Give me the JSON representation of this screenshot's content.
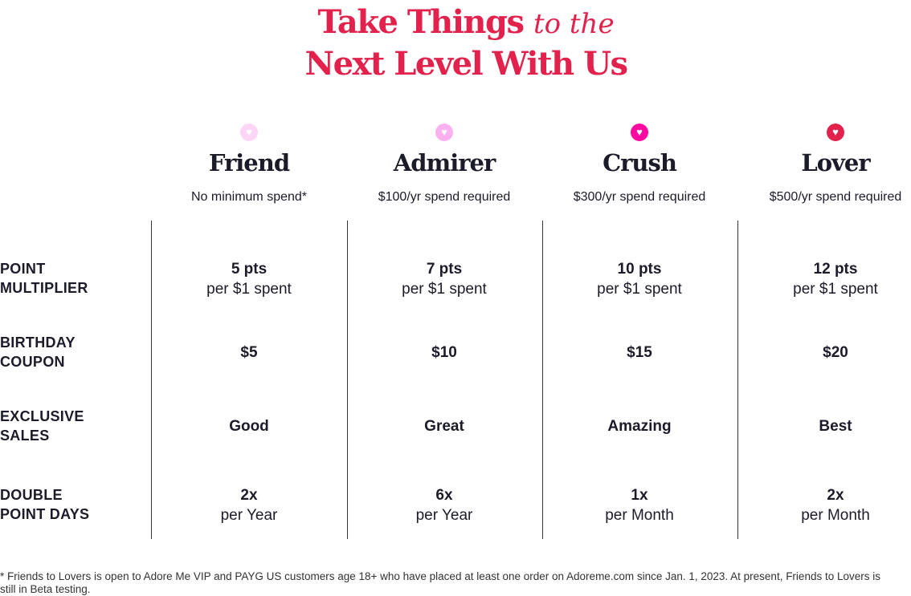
{
  "title": {
    "line1_bold": "Take Things",
    "line1_italic": "to the",
    "line2": "Next Level With Us",
    "color": "#e2224d"
  },
  "tiers": [
    {
      "name": "Friend",
      "requirement": "No minimum spend*",
      "heart_color": "#fdd5f7",
      "icon": "heart-icon"
    },
    {
      "name": "Admirer",
      "requirement": "$100/yr spend required",
      "heart_color": "#fbb0f0",
      "icon": "heart-icon"
    },
    {
      "name": "Crush",
      "requirement": "$300/yr spend required",
      "heart_color": "#ff0aa0",
      "icon": "heart-icon"
    },
    {
      "name": "Lover",
      "requirement": "$500/yr spend required",
      "heart_color": "#e2224d",
      "icon": "heart-icon"
    }
  ],
  "rows": [
    {
      "label1": "POINT",
      "label2": "MULTIPLIER",
      "cells": [
        {
          "main": "5 pts",
          "sub": "per $1 spent"
        },
        {
          "main": "7 pts",
          "sub": "per $1 spent"
        },
        {
          "main": "10 pts",
          "sub": "per $1 spent"
        },
        {
          "main": "12 pts",
          "sub": "per $1 spent"
        }
      ]
    },
    {
      "label1": "BIRTHDAY",
      "label2": "COUPON",
      "cells": [
        {
          "main": "$5"
        },
        {
          "main": "$10"
        },
        {
          "main": "$15"
        },
        {
          "main": "$20"
        }
      ]
    },
    {
      "label1": "EXCLUSIVE",
      "label2": "SALES",
      "cells": [
        {
          "main": "Good"
        },
        {
          "main": "Great"
        },
        {
          "main": "Amazing"
        },
        {
          "main": "Best"
        }
      ]
    },
    {
      "label1": "DOUBLE",
      "label2": "POINT DAYS",
      "cells": [
        {
          "main": "2x",
          "sub": "per Year"
        },
        {
          "main": "6x",
          "sub": "per Year"
        },
        {
          "main": "1x",
          "sub": "per Month"
        },
        {
          "main": "2x",
          "sub": "per Month"
        }
      ]
    }
  ],
  "footnote": "* Friends to Lovers is open to Adore Me VIP and PAYG US customers age 18+ who have placed at least one order on Adoreme.com since Jan. 1, 2023. At present, Friends to Lovers is still in Beta testing."
}
